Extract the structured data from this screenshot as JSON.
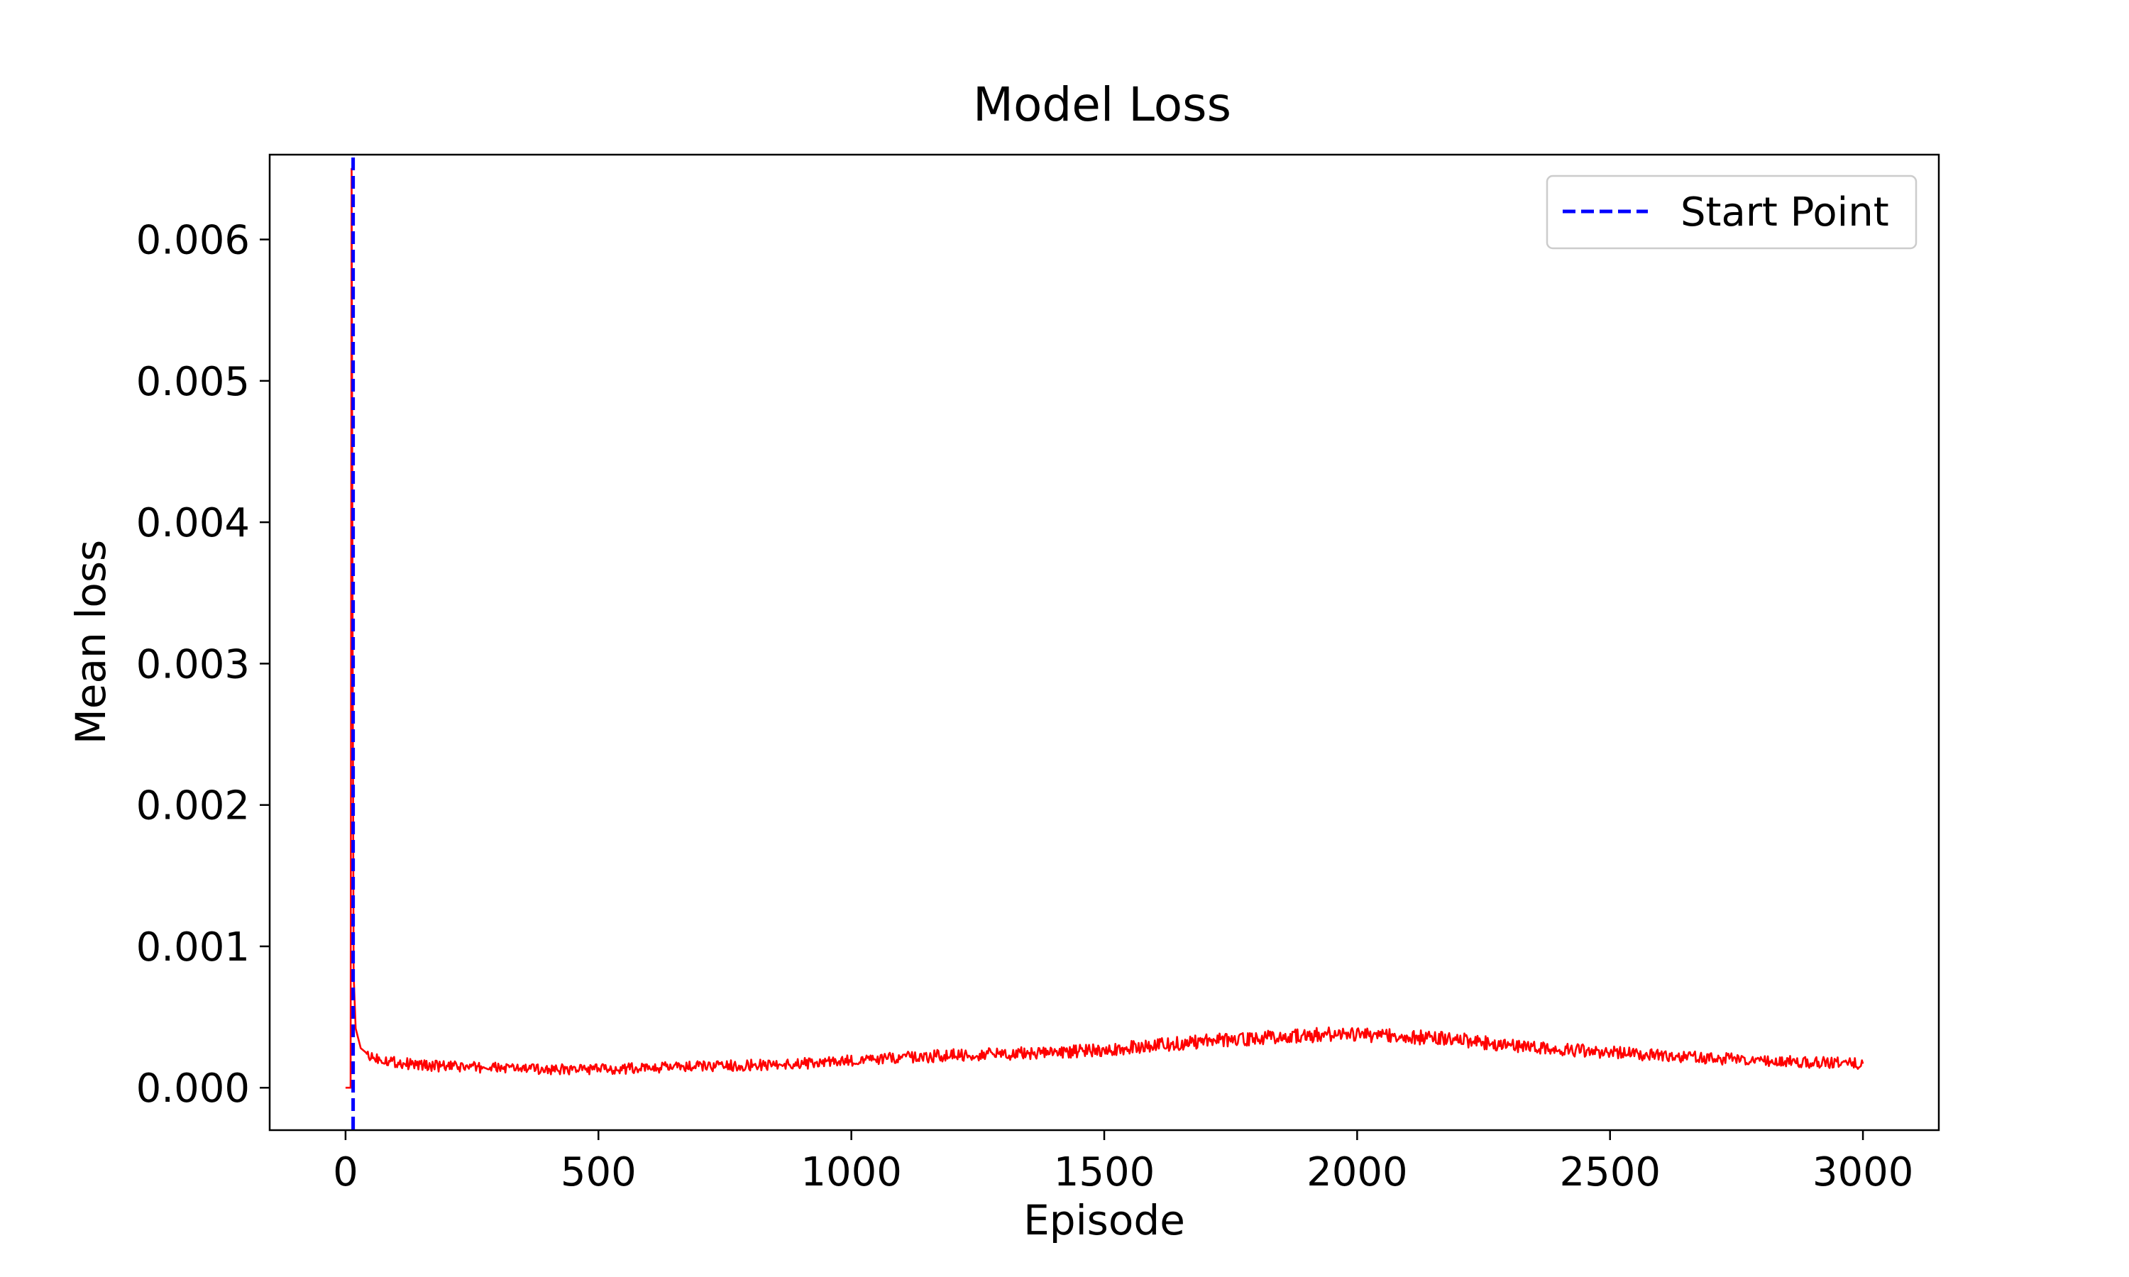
{
  "chart_data": {
    "type": "line",
    "title": "Model Loss",
    "xlabel": "Episode",
    "ylabel": "Mean loss",
    "xlim": [
      -150,
      3150
    ],
    "ylim": [
      -0.0003,
      0.0066
    ],
    "xticks": [
      0,
      500,
      1000,
      1500,
      2000,
      2500,
      3000
    ],
    "xtick_labels": [
      "0",
      "500",
      "1000",
      "1500",
      "2000",
      "2500",
      "3000"
    ],
    "yticks": [
      0.0,
      0.001,
      0.002,
      0.003,
      0.004,
      0.005,
      0.006
    ],
    "ytick_labels": [
      "0.000",
      "0.001",
      "0.002",
      "0.003",
      "0.004",
      "0.005",
      "0.006"
    ],
    "grid": false,
    "legend": {
      "position": "top-right",
      "entries": [
        "Start Point"
      ]
    },
    "series": [
      {
        "color": "#ff0000",
        "style": "solid",
        "x": [
          0,
          10,
          12,
          14,
          16,
          20,
          30,
          50,
          100,
          150,
          200,
          300,
          400,
          500,
          600,
          700,
          800,
          900,
          1000,
          1100,
          1200,
          1300,
          1400,
          1500,
          1600,
          1700,
          1800,
          1900,
          2000,
          2100,
          2200,
          2300,
          2400,
          2500,
          2600,
          2700,
          2800,
          2900,
          3000
        ],
        "y": [
          0.0,
          0.0,
          0.0065,
          0.0032,
          0.0008,
          0.00042,
          0.00028,
          0.00022,
          0.00018,
          0.00016,
          0.00015,
          0.00014,
          0.00013,
          0.00013,
          0.00014,
          0.00015,
          0.00016,
          0.00017,
          0.00019,
          0.00021,
          0.00023,
          0.00024,
          0.00025,
          0.00027,
          0.0003,
          0.00033,
          0.00035,
          0.00037,
          0.00038,
          0.00036,
          0.00034,
          0.0003,
          0.00027,
          0.00025,
          0.00023,
          0.00021,
          0.00019,
          0.00018,
          0.00017
        ]
      },
      {
        "name": "Start Point",
        "type": "vline",
        "color": "#0000ff",
        "style": "dashed",
        "x": 15
      }
    ]
  }
}
